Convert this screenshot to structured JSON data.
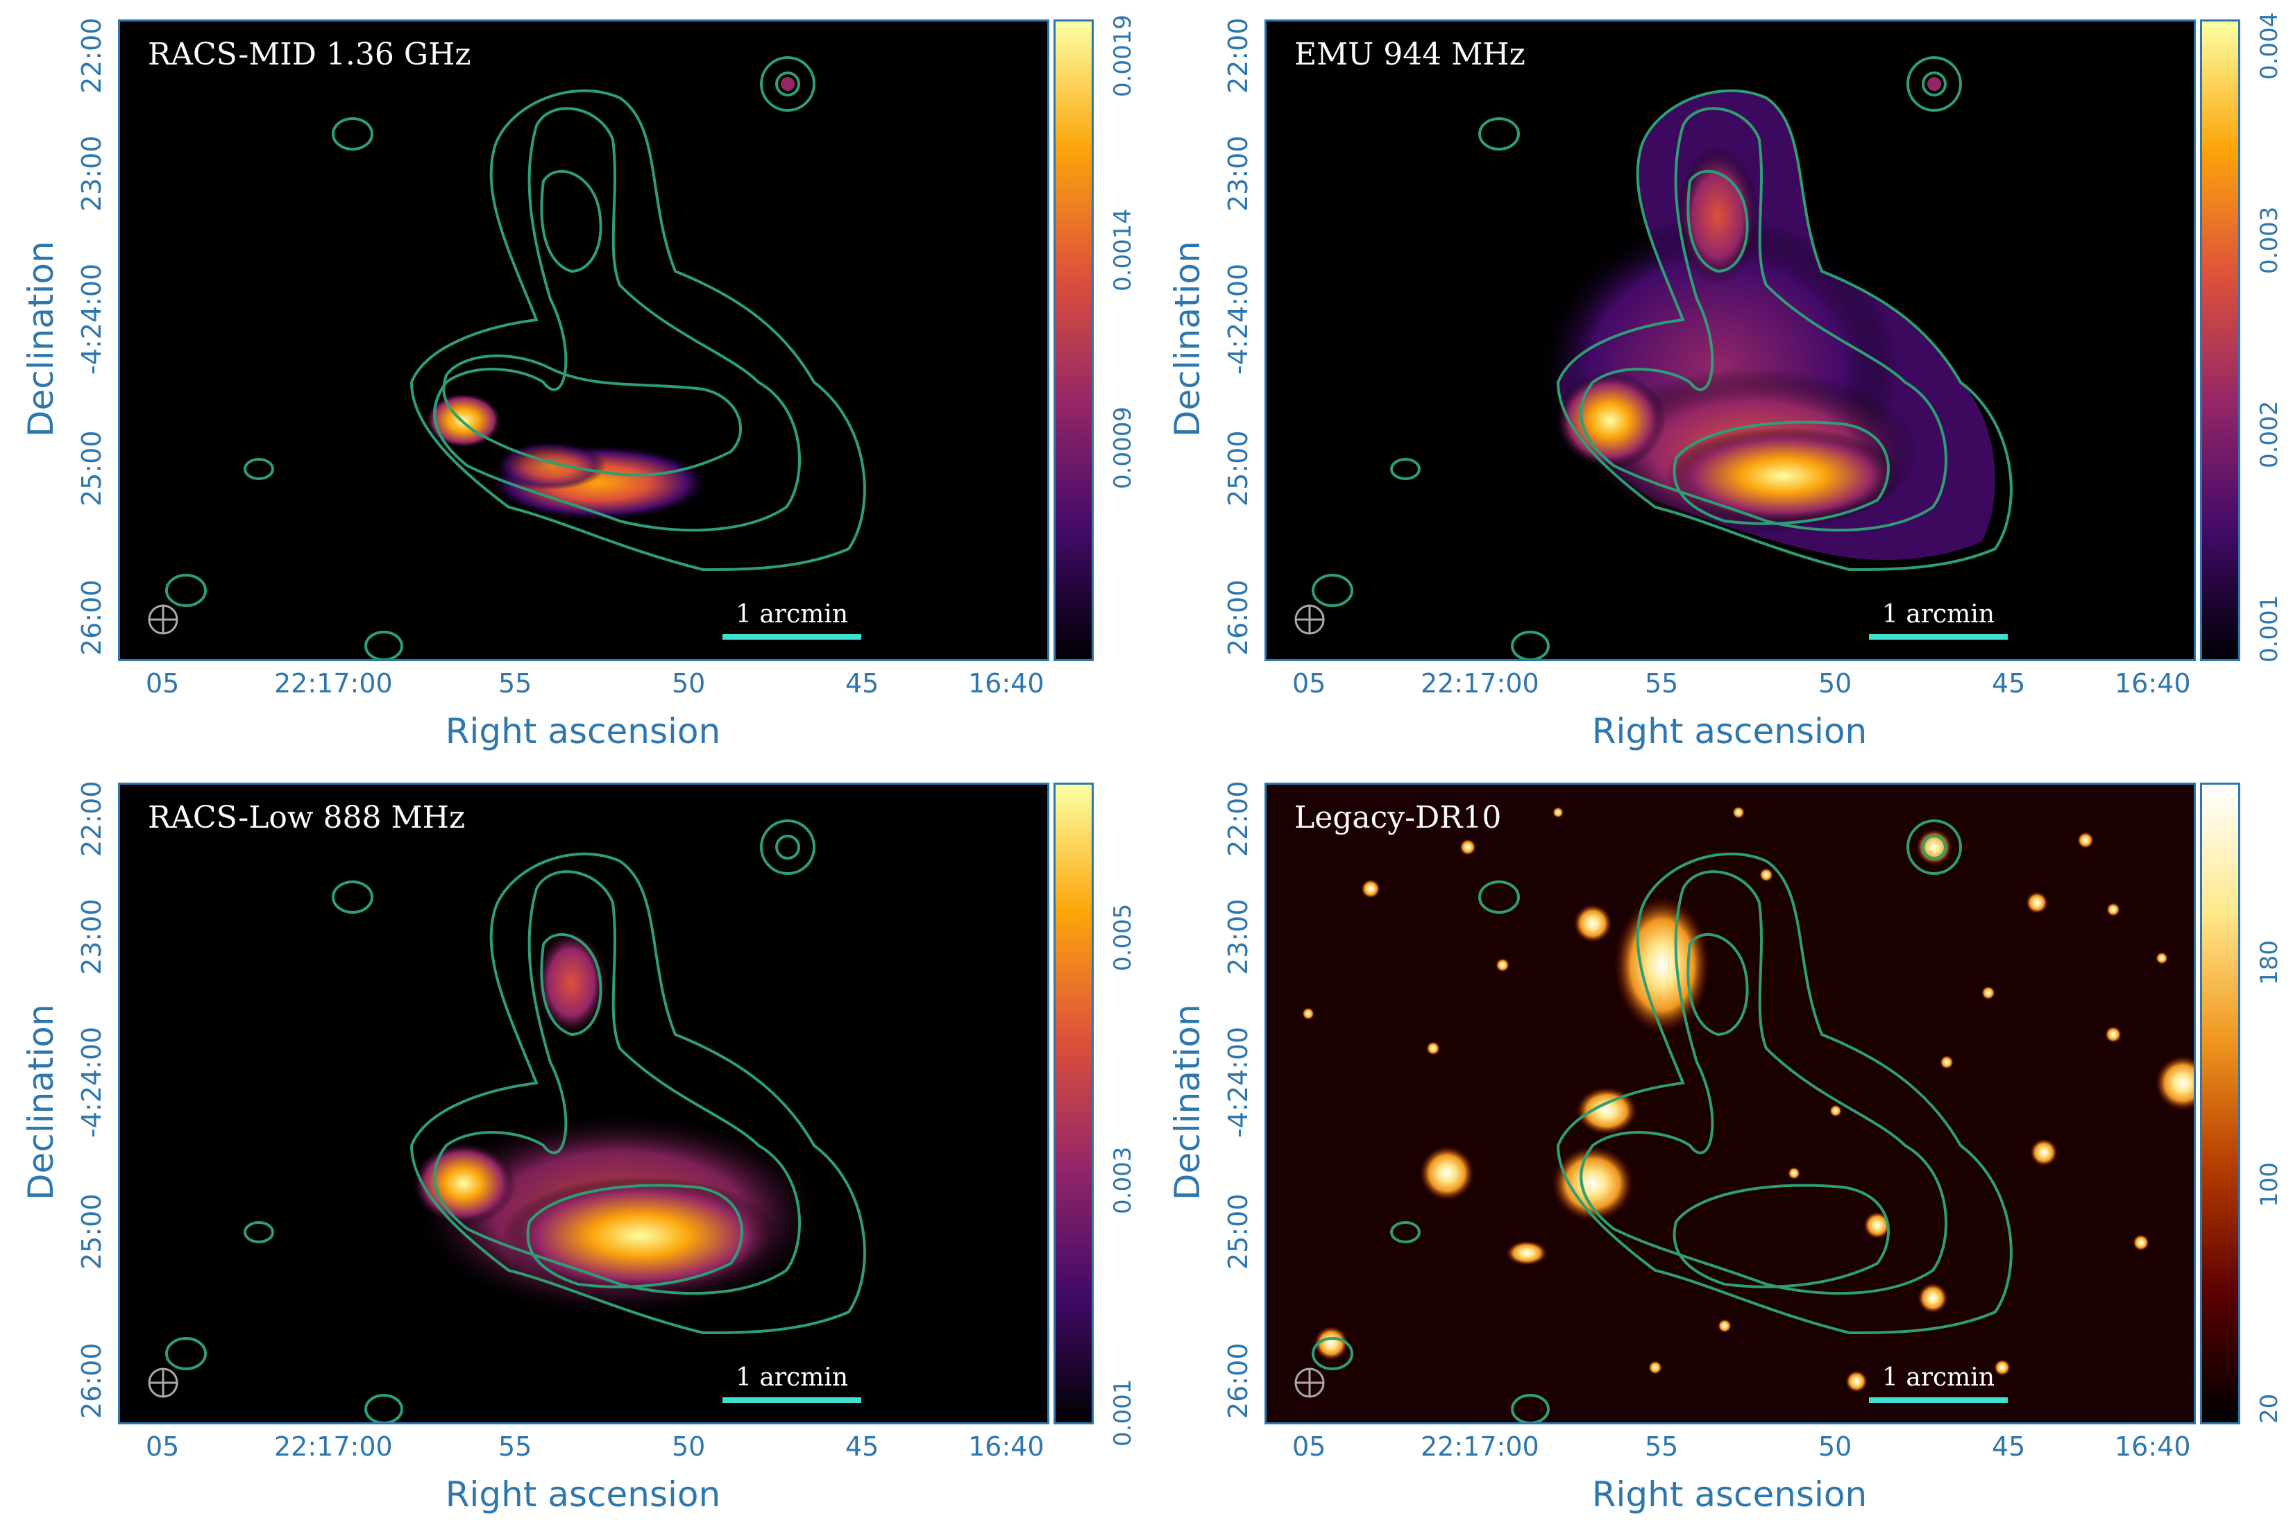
{
  "panels": [
    {
      "label": "RACS-MID 1.36 GHz",
      "scale_label": "1 arcmin",
      "colorbar_ticks": [
        "0.0019",
        "0.0014",
        "0.0009"
      ]
    },
    {
      "label": "EMU 944 MHz",
      "scale_label": "1 arcmin",
      "colorbar_ticks": [
        "0.004",
        "0.003",
        "0.002",
        "0.001"
      ]
    },
    {
      "label": "RACS-Low 888 MHz",
      "scale_label": "1 arcmin",
      "colorbar_ticks": [
        "0.005",
        "0.003",
        "0.001"
      ]
    },
    {
      "label": "Legacy-DR10",
      "scale_label": "1 arcmin",
      "colorbar_ticks": [
        "180",
        "100",
        "20"
      ]
    }
  ],
  "axes": {
    "x_title": "Right ascension",
    "y_title": "Declination",
    "x_ticks": [
      "05",
      "22:17:00",
      "55",
      "50",
      "45",
      "16:40"
    ],
    "y_ticks": [
      "22:00",
      "23:00",
      "-4:24:00",
      "25:00",
      "26:00"
    ]
  },
  "colors": {
    "axis": "#2E77AE",
    "contour": "#2E9E73",
    "scalebar": "#40E0D0",
    "inferno": [
      "#000004",
      "#420A68",
      "#932667",
      "#DD513A",
      "#FCA50A",
      "#FCFFA4"
    ],
    "afmhot": [
      "#000000",
      "#5A0000",
      "#B43C00",
      "#F09620",
      "#FFE88C",
      "#FFFFFF"
    ]
  }
}
